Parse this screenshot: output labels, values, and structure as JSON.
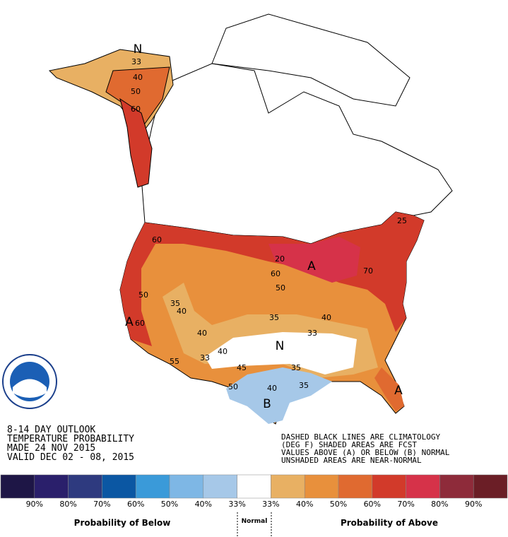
{
  "header": {
    "lines": [
      "8-14 DAY OUTLOOK",
      "TEMPERATURE PROBABILITY",
      "MADE  24 NOV 2015",
      "VALID  DEC 02 - 08, 2015"
    ]
  },
  "notes": [
    "DASHED BLACK LINES ARE CLIMATOLOGY",
    "(DEG F) SHADED AREAS ARE FCST",
    "VALUES ABOVE (A) OR BELOW (B) NORMAL",
    "UNSHADED AREAS ARE NEAR-NORMAL"
  ],
  "map_labels": [
    "N",
    "33",
    "40",
    "50",
    "60",
    "60",
    "50",
    "35",
    "40",
    "40",
    "A",
    "60",
    "55",
    "33",
    "40",
    "N",
    "45",
    "35",
    "40",
    "35",
    "50",
    "B",
    "A",
    "20",
    "60",
    "50",
    "40",
    "35",
    "33",
    "70",
    "25",
    "A"
  ],
  "legend": {
    "colors": [
      "#1e1646",
      "#2a1f6b",
      "#2e3a7f",
      "#0b57a3",
      "#3a9ad9",
      "#7eb7e5",
      "#a6c8e8",
      "#ffffff",
      "#e8b063",
      "#e8903c",
      "#e06a30",
      "#d23a2a",
      "#d63249",
      "#8e2b3a",
      "#6b1e26"
    ],
    "labels": [
      "90%",
      "80%",
      "70%",
      "60%",
      "50%",
      "40%",
      "33%",
      "33%",
      "40%",
      "50%",
      "60%",
      "70%",
      "80%",
      "90%"
    ],
    "below": "Probability of Below",
    "normal": "Normal",
    "above": "Probability of Above"
  }
}
